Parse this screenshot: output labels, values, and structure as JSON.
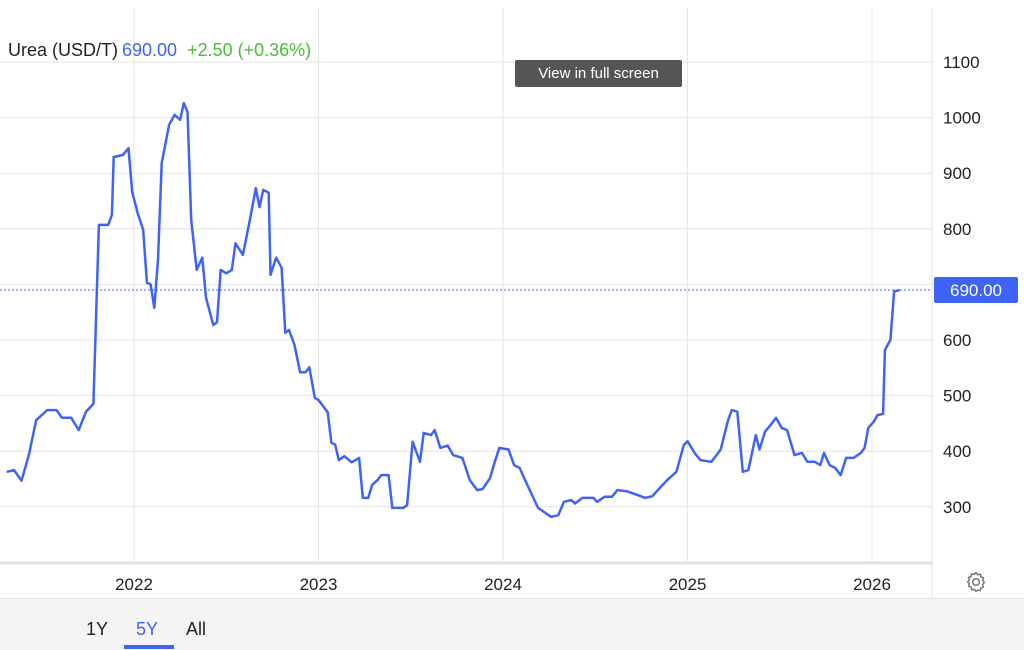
{
  "header": {
    "name": "Urea (USD/T)",
    "price": "690.00",
    "change": "+2.50 (+0.36%)"
  },
  "tooltip": "View in full screen",
  "range_buttons": [
    {
      "label": "1Y",
      "active": false
    },
    {
      "label": "5Y",
      "active": true
    },
    {
      "label": "All",
      "active": false
    }
  ],
  "colors": {
    "line": "#3e63f5",
    "change_positive": "#4cbb3c",
    "grid": "#e6e6e6"
  },
  "icons": {
    "settings": "gear-icon"
  },
  "chart_data": {
    "type": "line",
    "title": "Urea (USD/T)",
    "current_value_label": "690.00",
    "xlabel": "",
    "ylabel": "",
    "x_ticks": [
      "2022",
      "2023",
      "2024",
      "2025",
      "2026"
    ],
    "y_ticks": [
      "300",
      "400",
      "500",
      "600",
      "700",
      "800",
      "900",
      "1000",
      "1100"
    ],
    "y_tick_labels_shown": [
      "300",
      "400",
      "500",
      "600",
      "800",
      "900",
      "1000",
      "1100"
    ],
    "ylim": [
      210,
      1190
    ],
    "xlim": [
      2021.31,
      2026.32
    ],
    "grid": true,
    "y_axis_position": "right",
    "series": [
      {
        "x": [
          2021.31,
          2021.35,
          2021.39,
          2021.43,
          2021.47,
          2021.53,
          2021.58,
          2021.61,
          2021.66,
          2021.7,
          2021.74,
          2021.78,
          2021.81,
          2021.86,
          2021.88,
          2021.89,
          2021.94,
          2021.97,
          2021.99,
          2022.02,
          2022.05,
          2022.07,
          2022.09,
          2022.11,
          2022.13,
          2022.15,
          2022.19,
          2022.22,
          2022.25,
          2022.27,
          2022.29,
          2022.31,
          2022.34,
          2022.37,
          2022.39,
          2022.43,
          2022.45,
          2022.47,
          2022.5,
          2022.53,
          2022.55,
          2022.59,
          2022.63,
          2022.66,
          2022.68,
          2022.7,
          2022.73,
          2022.74,
          2022.77,
          2022.8,
          2022.82,
          2022.84,
          2022.87,
          2022.9,
          2022.93,
          2022.95,
          2022.98,
          2023.0,
          2023.05,
          2023.07,
          2023.09,
          2023.11,
          2023.14,
          2023.18,
          2023.22,
          2023.24,
          2023.27,
          2023.29,
          2023.32,
          2023.34,
          2023.38,
          2023.4,
          2023.46,
          2023.48,
          2023.51,
          2023.55,
          2023.57,
          2023.61,
          2023.63,
          2023.66,
          2023.7,
          2023.73,
          2023.78,
          2023.82,
          2023.86,
          2023.89,
          2023.93,
          2023.95,
          2023.98,
          2024.03,
          2024.06,
          2024.09,
          2024.12,
          2024.17,
          2024.19,
          2024.23,
          2024.26,
          2024.3,
          2024.33,
          2024.37,
          2024.39,
          2024.43,
          2024.49,
          2024.51,
          2024.55,
          2024.59,
          2024.62,
          2024.67,
          2024.73,
          2024.77,
          2024.81,
          2024.85,
          2024.89,
          2024.94,
          2024.98,
          2025.0,
          2025.04,
          2025.07,
          2025.13,
          2025.18,
          2025.22,
          2025.24,
          2025.27,
          2025.3,
          2025.33,
          2025.37,
          2025.39,
          2025.42,
          2025.45,
          2025.48,
          2025.51,
          2025.54,
          2025.58,
          2025.62,
          2025.65,
          2025.69,
          2025.72,
          2025.74,
          2025.77,
          2025.8,
          2025.83,
          2025.86,
          2025.9,
          2025.94,
          2025.96,
          2025.98,
          2026.01,
          2026.03,
          2026.06,
          2026.07,
          2026.1,
          2026.12,
          2026.15
        ],
        "y": [
          363,
          366,
          347,
          393,
          456,
          474,
          474,
          460,
          460,
          438,
          471,
          485,
          807,
          807,
          825,
          929,
          933,
          945,
          866,
          828,
          798,
          703,
          700,
          658,
          744,
          918,
          987,
          1005,
          996,
          1026,
          1010,
          816,
          726,
          748,
          676,
          627,
          632,
          726,
          720,
          726,
          774,
          753,
          819,
          873,
          839,
          870,
          865,
          717,
          748,
          730,
          613,
          618,
          591,
          542,
          542,
          551,
          496,
          492,
          470,
          415,
          412,
          384,
          391,
          380,
          388,
          316,
          316,
          339,
          348,
          357,
          357,
          298,
          298,
          303,
          417,
          381,
          433,
          429,
          438,
          406,
          410,
          393,
          388,
          348,
          330,
          332,
          352,
          375,
          406,
          403,
          375,
          370,
          348,
          312,
          298,
          289,
          282,
          285,
          309,
          312,
          306,
          316,
          316,
          309,
          318,
          318,
          330,
          328,
          321,
          316,
          319,
          334,
          348,
          363,
          411,
          418,
          396,
          384,
          381,
          403,
          456,
          474,
          471,
          363,
          366,
          429,
          403,
          435,
          447,
          460,
          442,
          438,
          393,
          397,
          381,
          381,
          375,
          397,
          375,
          370,
          357,
          388,
          388,
          397,
          406,
          442,
          453,
          465,
          467,
          582,
          600,
          687,
          690
        ]
      }
    ]
  }
}
